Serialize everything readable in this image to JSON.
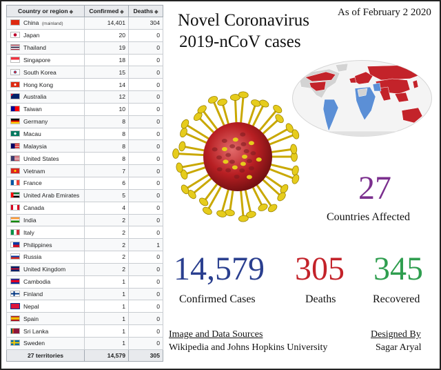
{
  "header": {
    "title_line1": "Novel Coronavirus",
    "title_line2": "2019-nCoV cases",
    "as_of": "As of February 2 2020"
  },
  "table": {
    "columns": [
      "Country or region",
      "Confirmed",
      "Deaths"
    ],
    "sort_glyph": "◆",
    "rows": [
      {
        "name": "China",
        "note": "(mainland)",
        "confirmed": "14,401",
        "deaths": "304",
        "flag": "china-flag-icon"
      },
      {
        "name": "Japan",
        "confirmed": "20",
        "deaths": "0",
        "flag": "japan-flag-icon"
      },
      {
        "name": "Thailand",
        "confirmed": "19",
        "deaths": "0",
        "flag": "thailand-flag-icon"
      },
      {
        "name": "Singapore",
        "confirmed": "18",
        "deaths": "0",
        "flag": "singapore-flag-icon"
      },
      {
        "name": "South Korea",
        "confirmed": "15",
        "deaths": "0",
        "flag": "south-korea-flag-icon"
      },
      {
        "name": "Hong Kong",
        "confirmed": "14",
        "deaths": "0",
        "flag": "hong-kong-flag-icon"
      },
      {
        "name": "Australia",
        "confirmed": "12",
        "deaths": "0",
        "flag": "australia-flag-icon"
      },
      {
        "name": "Taiwan",
        "confirmed": "10",
        "deaths": "0",
        "flag": "taiwan-flag-icon"
      },
      {
        "name": "Germany",
        "confirmed": "8",
        "deaths": "0",
        "flag": "germany-flag-icon"
      },
      {
        "name": "Macau",
        "confirmed": "8",
        "deaths": "0",
        "flag": "macau-flag-icon"
      },
      {
        "name": "Malaysia",
        "confirmed": "8",
        "deaths": "0",
        "flag": "malaysia-flag-icon"
      },
      {
        "name": "United States",
        "confirmed": "8",
        "deaths": "0",
        "flag": "united-states-flag-icon"
      },
      {
        "name": "Vietnam",
        "confirmed": "7",
        "deaths": "0",
        "flag": "vietnam-flag-icon"
      },
      {
        "name": "France",
        "confirmed": "6",
        "deaths": "0",
        "flag": "france-flag-icon"
      },
      {
        "name": "United Arab Emirates",
        "confirmed": "5",
        "deaths": "0",
        "flag": "uae-flag-icon"
      },
      {
        "name": "Canada",
        "confirmed": "4",
        "deaths": "0",
        "flag": "canada-flag-icon"
      },
      {
        "name": "India",
        "confirmed": "2",
        "deaths": "0",
        "flag": "india-flag-icon"
      },
      {
        "name": "Italy",
        "confirmed": "2",
        "deaths": "0",
        "flag": "italy-flag-icon"
      },
      {
        "name": "Philippines",
        "confirmed": "2",
        "deaths": "1",
        "flag": "philippines-flag-icon"
      },
      {
        "name": "Russia",
        "confirmed": "2",
        "deaths": "0",
        "flag": "russia-flag-icon"
      },
      {
        "name": "United Kingdom",
        "confirmed": "2",
        "deaths": "0",
        "flag": "united-kingdom-flag-icon"
      },
      {
        "name": "Cambodia",
        "confirmed": "1",
        "deaths": "0",
        "flag": "cambodia-flag-icon"
      },
      {
        "name": "Finland",
        "confirmed": "1",
        "deaths": "0",
        "flag": "finland-flag-icon"
      },
      {
        "name": "Nepal",
        "confirmed": "1",
        "deaths": "0",
        "flag": "nepal-flag-icon"
      },
      {
        "name": "Spain",
        "confirmed": "1",
        "deaths": "0",
        "flag": "spain-flag-icon"
      },
      {
        "name": "Sri Lanka",
        "confirmed": "1",
        "deaths": "0",
        "flag": "sri-lanka-flag-icon"
      },
      {
        "name": "Sweden",
        "confirmed": "1",
        "deaths": "0",
        "flag": "sweden-flag-icon"
      }
    ],
    "footer": {
      "label": "27 territories",
      "confirmed": "14,579",
      "deaths": "305"
    }
  },
  "stats": {
    "countries_value": "27",
    "countries_label": "Countries Affected",
    "confirmed_value": "14,579",
    "confirmed_label": "Confirmed Cases",
    "deaths_value": "305",
    "deaths_label": "Deaths",
    "recovered_value": "345",
    "recovered_label": "Recovered"
  },
  "colors": {
    "countries": "#7b2f8e",
    "confirmed": "#2a3f8f",
    "deaths": "#c3232a",
    "recovered": "#2f9e4f",
    "map_high": "#c3232a",
    "map_low": "#5b8fd6"
  },
  "footer": {
    "sources_heading": "Image and Data Sources",
    "sources_text": "Wikipedia and Johns Hopkins University",
    "designed_heading": "Designed By",
    "designed_name": "Sagar Aryal"
  }
}
